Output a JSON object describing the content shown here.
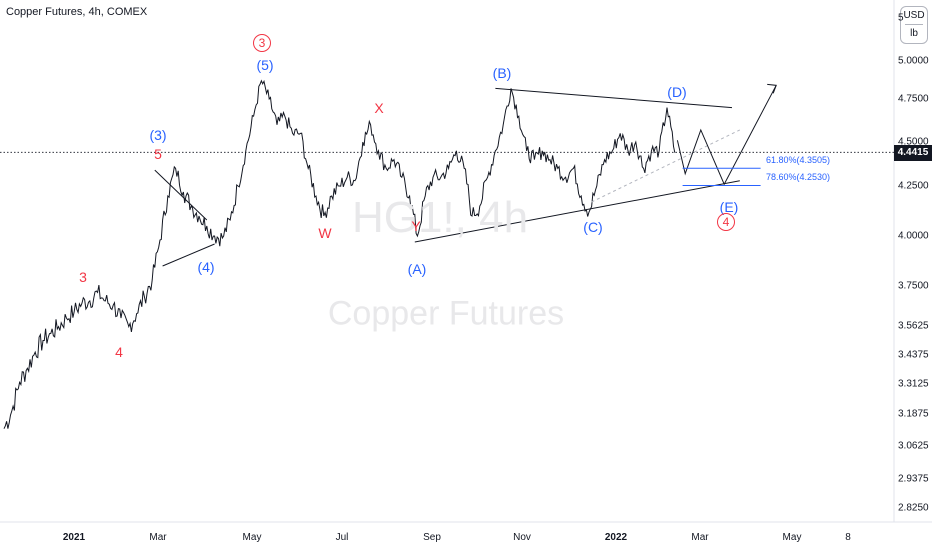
{
  "chart_title": "Copper Futures, 4h, COMEX",
  "unit_top": "USD",
  "unit_bottom": "lb",
  "current_price": "4.4415",
  "watermark": {
    "symbol": "HG1!, 4h",
    "name": "Copper Futures"
  },
  "chart_data": {
    "type": "line",
    "y_ticks": [
      "2.8250",
      "2.9375",
      "3.0625",
      "3.1875",
      "3.3125",
      "3.4375",
      "3.5625",
      "3.7500",
      "4.0000",
      "4.2500",
      "4.5000",
      "4.7500",
      "5.0000"
    ],
    "x_ticks": [
      "2021",
      "Mar",
      "May",
      "Jul",
      "Sep",
      "Nov",
      "2022",
      "Mar",
      "May",
      "8"
    ],
    "y_top_partial": "5",
    "series": [
      {
        "values": [
          [
            0,
            3.13
          ],
          [
            3,
            3.2
          ],
          [
            6,
            3.32
          ],
          [
            9,
            3.38
          ],
          [
            12,
            3.45
          ],
          [
            15,
            3.5
          ],
          [
            18,
            3.53
          ],
          [
            21,
            3.56
          ],
          [
            24,
            3.6
          ],
          [
            27,
            3.63
          ],
          [
            30,
            3.67
          ],
          [
            33,
            3.68
          ],
          [
            36,
            3.72
          ],
          [
            39,
            3.68
          ],
          [
            42,
            3.66
          ],
          [
            45,
            3.6
          ],
          [
            48,
            3.56
          ],
          [
            51,
            3.62
          ],
          [
            54,
            3.7
          ],
          [
            57,
            3.78
          ],
          [
            60,
            3.98
          ],
          [
            63,
            4.2
          ],
          [
            66,
            4.35
          ],
          [
            69,
            4.22
          ],
          [
            72,
            4.15
          ],
          [
            75,
            4.1
          ],
          [
            78,
            4.05
          ],
          [
            81,
            4.0
          ],
          [
            84,
            3.99
          ],
          [
            87,
            4.08
          ],
          [
            90,
            4.25
          ],
          [
            93,
            4.45
          ],
          [
            96,
            4.65
          ],
          [
            99,
            4.87
          ],
          [
            102,
            4.75
          ],
          [
            105,
            4.6
          ],
          [
            108,
            4.65
          ],
          [
            111,
            4.55
          ],
          [
            114,
            4.55
          ],
          [
            117,
            4.35
          ],
          [
            120,
            4.2
          ],
          [
            123,
            4.1
          ],
          [
            126,
            4.2
          ],
          [
            129,
            4.25
          ],
          [
            132,
            4.3
          ],
          [
            135,
            4.28
          ],
          [
            138,
            4.5
          ],
          [
            141,
            4.6
          ],
          [
            144,
            4.45
          ],
          [
            147,
            4.35
          ],
          [
            150,
            4.4
          ],
          [
            153,
            4.3
          ],
          [
            156,
            4.2
          ],
          [
            159,
            4.0
          ],
          [
            162,
            4.2
          ],
          [
            165,
            4.3
          ],
          [
            168,
            4.3
          ],
          [
            171,
            4.35
          ],
          [
            174,
            4.45
          ],
          [
            177,
            4.35
          ],
          [
            180,
            4.1
          ],
          [
            183,
            4.15
          ],
          [
            186,
            4.3
          ],
          [
            189,
            4.45
          ],
          [
            192,
            4.6
          ],
          [
            195,
            4.82
          ],
          [
            198,
            4.65
          ],
          [
            201,
            4.45
          ],
          [
            204,
            4.4
          ],
          [
            207,
            4.45
          ],
          [
            210,
            4.4
          ],
          [
            213,
            4.35
          ],
          [
            216,
            4.3
          ],
          [
            219,
            4.35
          ],
          [
            222,
            4.2
          ],
          [
            225,
            4.12
          ],
          [
            228,
            4.25
          ],
          [
            231,
            4.4
          ],
          [
            234,
            4.45
          ],
          [
            237,
            4.55
          ],
          [
            240,
            4.45
          ],
          [
            243,
            4.5
          ],
          [
            246,
            4.35
          ],
          [
            249,
            4.45
          ],
          [
            252,
            4.45
          ],
          [
            255,
            4.7
          ],
          [
            258,
            4.44
          ]
        ]
      }
    ],
    "fib_levels": [
      {
        "label": "61.80%(4.3505)",
        "value": 4.3505
      },
      {
        "label": "78.60%(4.2530)",
        "value": 4.253
      }
    ],
    "wave_labels": [
      {
        "text": "3",
        "color": "red",
        "circled": true
      },
      {
        "text": "(5)",
        "color": "blue",
        "circled": false
      },
      {
        "text": "(3)",
        "color": "blue",
        "circled": false
      },
      {
        "text": "5",
        "color": "red",
        "circled": false
      },
      {
        "text": "3",
        "color": "red",
        "circled": false
      },
      {
        "text": "4",
        "color": "red",
        "circled": false
      },
      {
        "text": "(4)",
        "color": "blue",
        "circled": false
      },
      {
        "text": "W",
        "color": "red",
        "circled": false
      },
      {
        "text": "X",
        "color": "red",
        "circled": false
      },
      {
        "text": "Y",
        "color": "red",
        "circled": false
      },
      {
        "text": "(A)",
        "color": "blue",
        "circled": false
      },
      {
        "text": "(B)",
        "color": "blue",
        "circled": false
      },
      {
        "text": "(C)",
        "color": "blue",
        "circled": false
      },
      {
        "text": "(D)",
        "color": "blue",
        "circled": false
      },
      {
        "text": "(E)",
        "color": "blue",
        "circled": false
      },
      {
        "text": "4",
        "color": "red",
        "circled": true
      }
    ],
    "colors": {
      "price": "#131722",
      "wave_blue": "#2962ff",
      "wave_red": "#f23645"
    },
    "grid": false
  }
}
